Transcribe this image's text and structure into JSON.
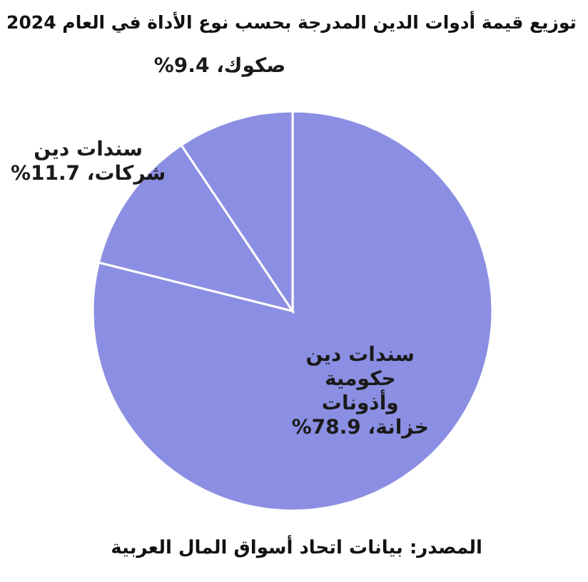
{
  "chart_data": {
    "type": "pie",
    "title": "توزيع قيمة أدوات الدين المدرجة بحسب نوع الأداة في العام 2024",
    "categories": [
      "سندات دين حكومية وأذونات خزانة،",
      "سندات دين شركات،",
      "صكوك،"
    ],
    "values": [
      78.9,
      11.7,
      9.4
    ],
    "value_labels": [
      "78.9%",
      "11.7%",
      "9.4%"
    ],
    "colors": [
      "#8b8fe3",
      "#8b8fe3",
      "#8b8fe3"
    ],
    "annotations": [
      "المصدر: بيانات اتحاد أسواق المال العربية"
    ]
  }
}
